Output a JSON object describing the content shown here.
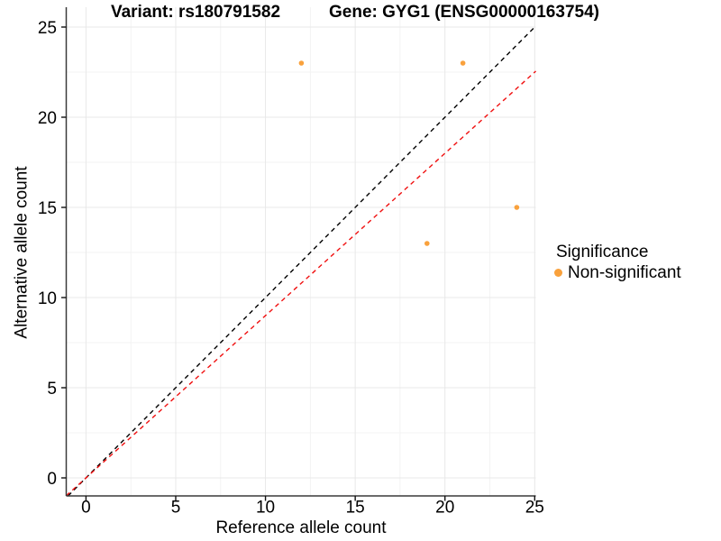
{
  "legend": {
    "title": "Significance",
    "items": [
      {
        "label": "Non-significant",
        "color": "#F9A13C"
      }
    ]
  },
  "chart_data": {
    "type": "scatter",
    "title_left": "Variant: rs180791582",
    "title_right": "Gene: GYG1 (ENSG00000163754)",
    "xlabel": "Reference allele count",
    "ylabel": "Alternative allele count",
    "xlim": [
      -1.1,
      25.06
    ],
    "ylim": [
      -1.0,
      26.1
    ],
    "x_major_ticks": [
      0,
      5,
      10,
      15,
      20,
      25
    ],
    "y_major_ticks": [
      0,
      5,
      10,
      15,
      20,
      25
    ],
    "x_minor_ticks": [
      2.5,
      7.5,
      12.5,
      17.5,
      22.5
    ],
    "y_minor_ticks": [
      2.5,
      7.5,
      12.5,
      17.5,
      22.5
    ],
    "grid": true,
    "legend_position": "right",
    "series": [
      {
        "name": "Non-significant",
        "color": "#F9A13C",
        "points": [
          [
            12,
            23
          ],
          [
            21,
            23
          ],
          [
            19,
            13
          ],
          [
            24,
            15
          ]
        ]
      }
    ],
    "reference_lines": [
      {
        "name": "identity-line",
        "slope": 1.0,
        "intercept": 0,
        "color": "#000000",
        "dashed": true
      },
      {
        "name": "expected-ratio-line",
        "slope": 0.9,
        "intercept": 0,
        "color": "#F01010",
        "dashed": true
      }
    ],
    "colors": {
      "point": "#F9A13C",
      "grid_major": "#E8E8E8",
      "grid_minor": "#F3F3F3",
      "axis": "#3A3A3A",
      "text": "#000000"
    }
  }
}
